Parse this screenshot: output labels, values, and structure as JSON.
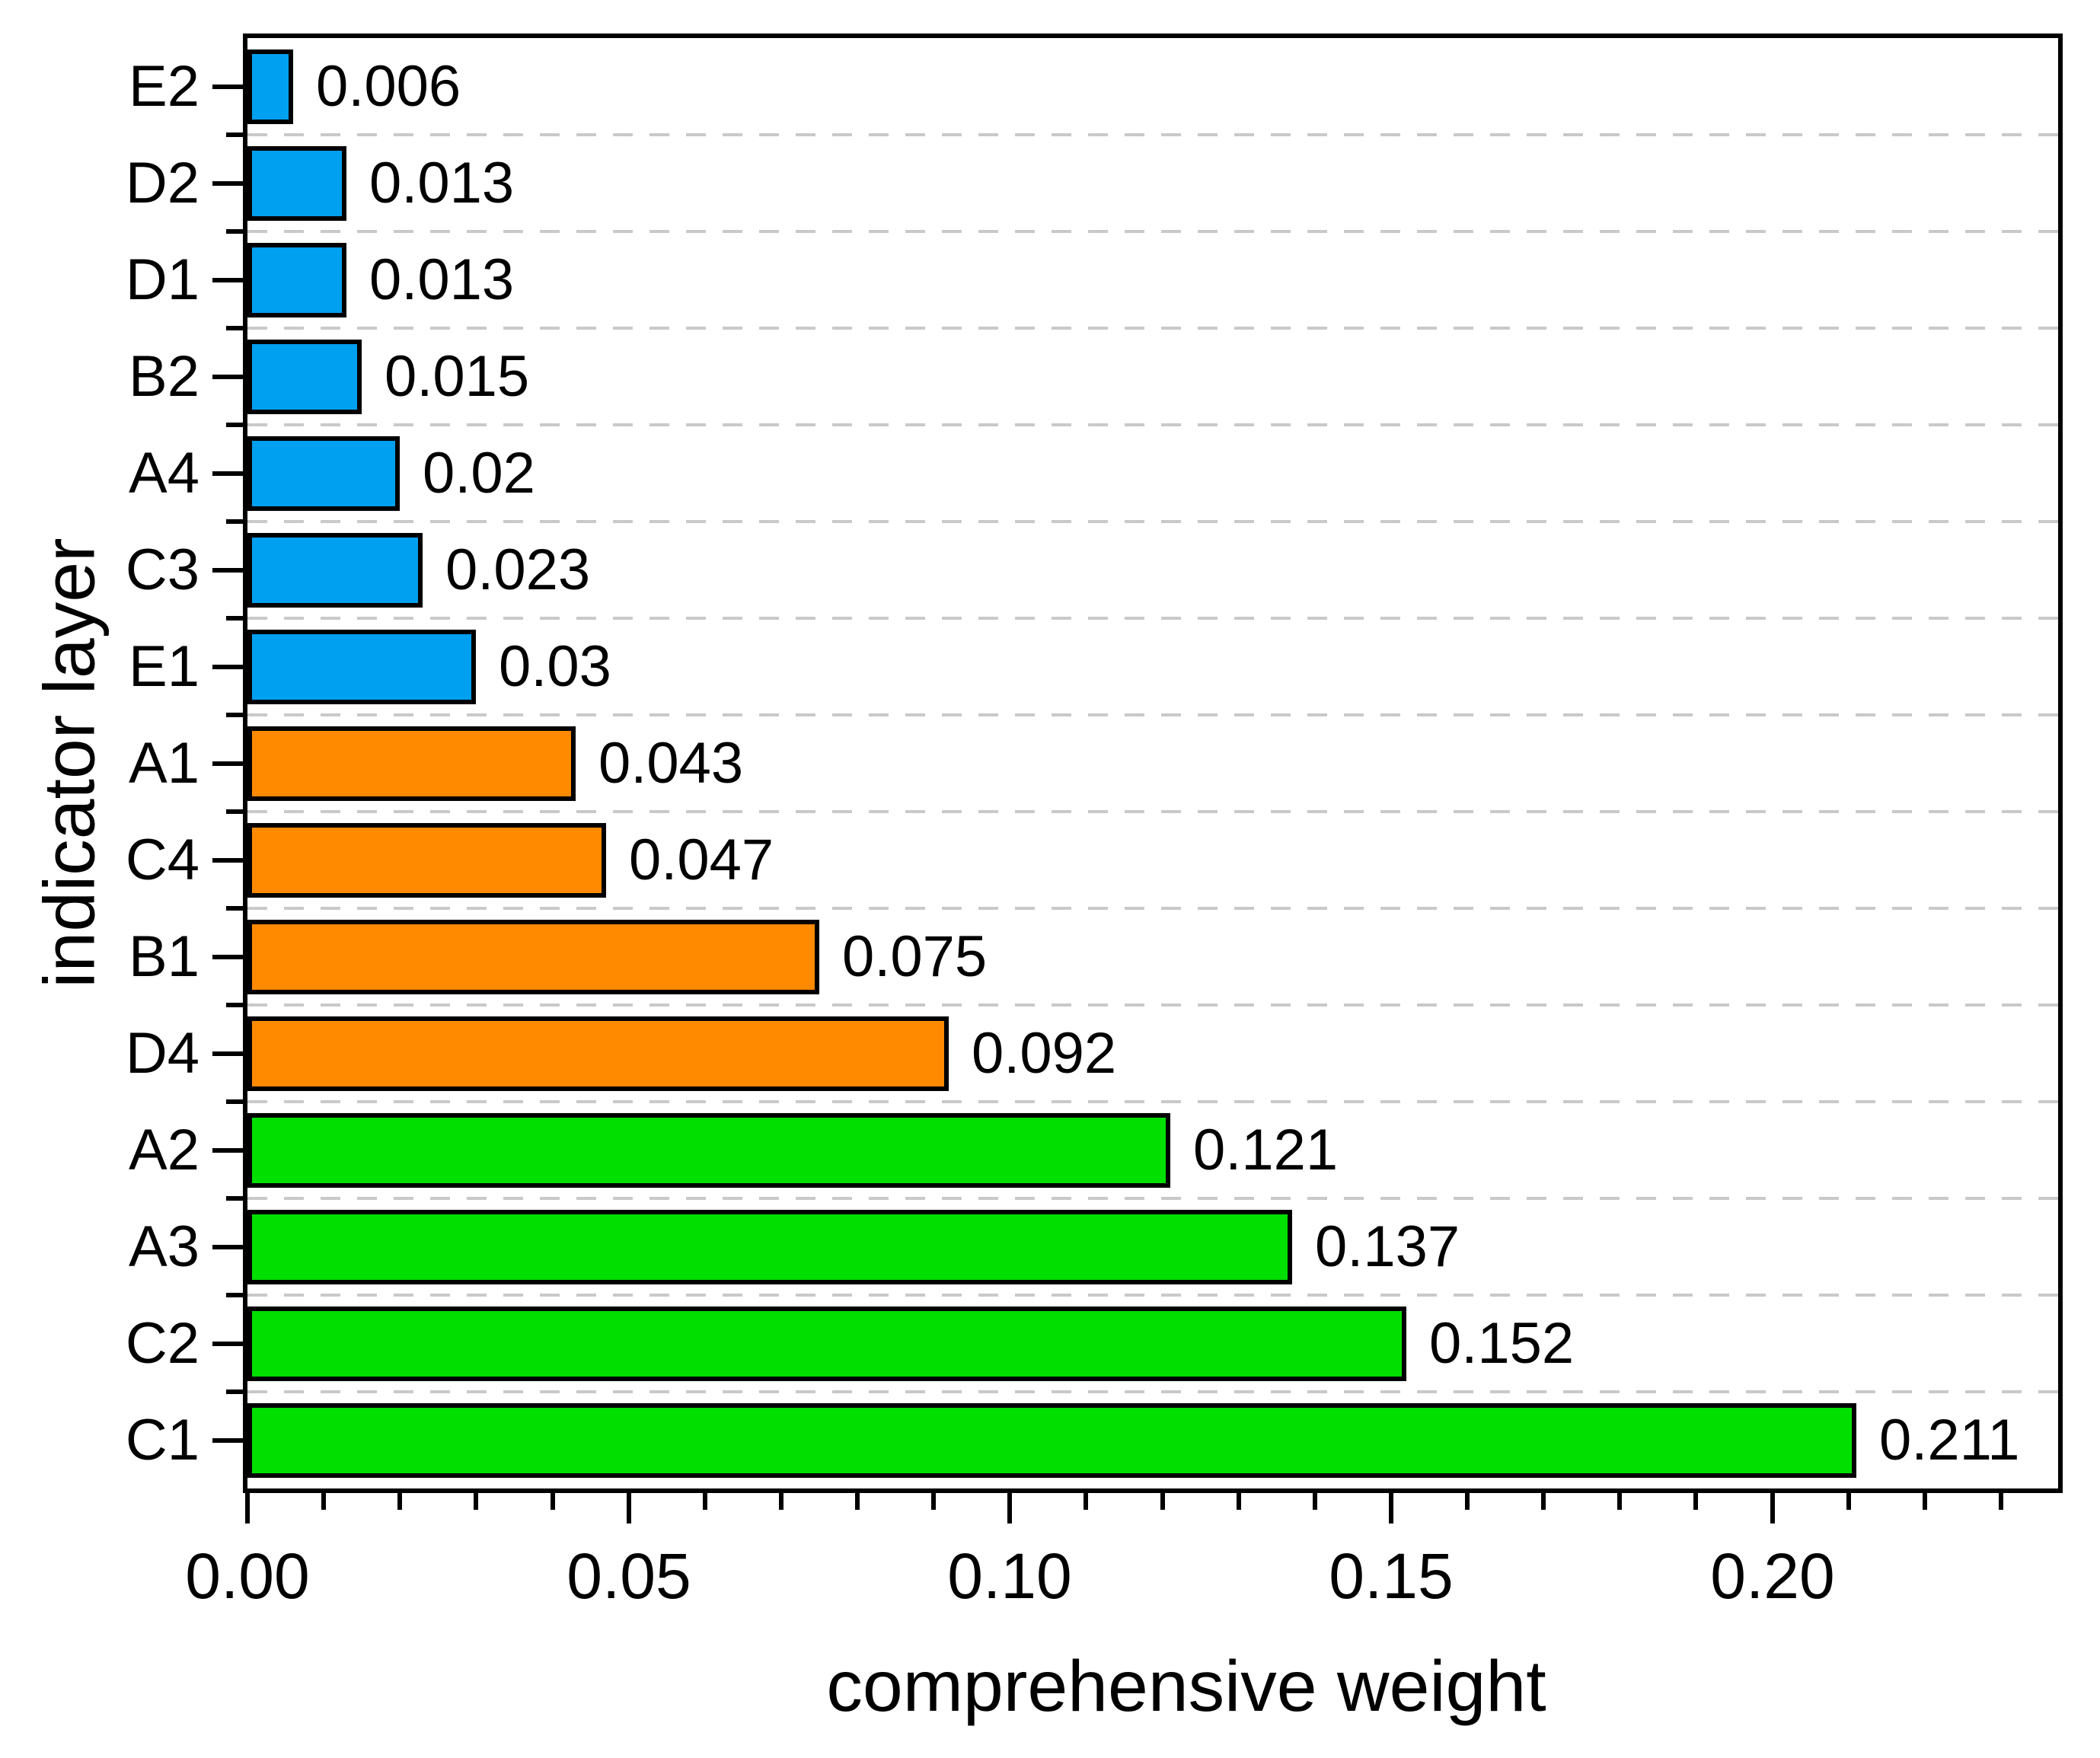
{
  "chart_data": {
    "type": "bar",
    "orientation": "horizontal",
    "title": "",
    "xlabel": "comprehensive weight",
    "ylabel": "indicator layer",
    "categories": [
      "E2",
      "D2",
      "D1",
      "B2",
      "A4",
      "C3",
      "E1",
      "A1",
      "C4",
      "B1",
      "D4",
      "A2",
      "A3",
      "C2",
      "C1"
    ],
    "values": [
      0.006,
      0.013,
      0.013,
      0.015,
      0.02,
      0.023,
      0.03,
      0.043,
      0.047,
      0.075,
      0.092,
      0.121,
      0.137,
      0.152,
      0.211
    ],
    "value_labels": [
      "0.006",
      "0.013",
      "0.013",
      "0.015",
      "0.02",
      "0.023",
      "0.03",
      "0.043",
      "0.047",
      "0.075",
      "0.092",
      "0.121",
      "0.137",
      "0.152",
      "0.211"
    ],
    "groups": [
      "blue",
      "blue",
      "blue",
      "blue",
      "blue",
      "blue",
      "blue",
      "orange",
      "orange",
      "orange",
      "orange",
      "green",
      "green",
      "green",
      "green"
    ],
    "palette": {
      "blue": "#00A0F0",
      "orange": "#FF8A00",
      "green": "#00DF00"
    },
    "bar_outline_color": "#000000",
    "grid_color": "#C9C9C9",
    "axis_color": "#000000",
    "background_color": "#FFFFFF",
    "xlim": [
      0,
      0.2375
    ],
    "x_major_ticks": [
      {
        "value": 0.0,
        "label": "0.00"
      },
      {
        "value": 0.05,
        "label": "0.05"
      },
      {
        "value": 0.1,
        "label": "0.10"
      },
      {
        "value": 0.15,
        "label": "0.15"
      },
      {
        "value": 0.2,
        "label": "0.20"
      }
    ],
    "x_minor_step": 0.01,
    "grid": "horizontal dashed lines at category boundaries",
    "legend": null
  }
}
